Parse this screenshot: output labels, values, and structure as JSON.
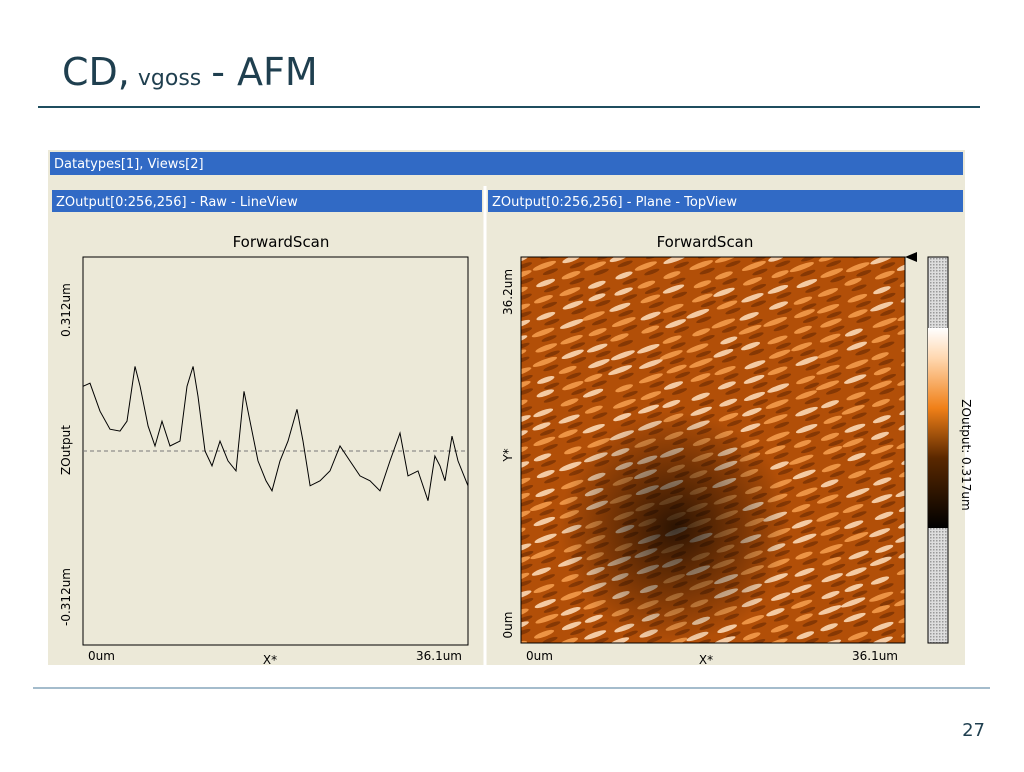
{
  "slide": {
    "title_main": "CD,",
    "title_sub": "vgoss",
    "title_rest": "- AFM",
    "page_number": "27"
  },
  "window": {
    "title": "Datatypes[1], Views[2]"
  },
  "line_view": {
    "header": "ZOutput[0:256,256] - Raw - LineView",
    "plot_title": "ForwardScan",
    "y_label": "ZOutput",
    "x_label": "X*",
    "y_top_label": "0.312um",
    "y_bottom_label": "-0.312um",
    "x_left_label": "0um",
    "x_right_label": "36.1um",
    "xlim": [
      0,
      36.1
    ],
    "ylim": [
      -0.312,
      0.312
    ],
    "x": [
      0,
      0.66,
      1.59,
      2.53,
      3.47,
      4.13,
      4.88,
      5.35,
      6.1,
      6.75,
      7.41,
      8.16,
      9.1,
      9.75,
      10.32,
      10.78,
      11.44,
      12.1,
      12.85,
      13.6,
      14.35,
      15.1,
      15.66,
      16.41,
      17.16,
      17.72,
      18.47,
      19.22,
      20.07,
      20.63,
      21.29,
      22.22,
      23.16,
      24.1,
      25.03,
      25.97,
      26.91,
      27.85,
      28.79,
      29.72,
      30.47,
      31.41,
      32.35,
      33.0,
      33.47,
      33.94,
      34.6,
      35.16,
      36.1
    ],
    "profile": [
      0.104,
      0.109,
      0.064,
      0.035,
      0.032,
      0.048,
      0.136,
      0.104,
      0.04,
      0.008,
      0.048,
      0.008,
      0.016,
      0.104,
      0.136,
      0.088,
      0,
      -0.024,
      0.016,
      -0.016,
      -0.032,
      0.096,
      0.048,
      -0.016,
      -0.048,
      -0.064,
      -0.016,
      0.016,
      0.067,
      0.016,
      -0.056,
      -0.048,
      -0.032,
      0.008,
      -0.016,
      -0.04,
      -0.048,
      -0.064,
      -0.016,
      0.029,
      -0.04,
      -0.032,
      -0.08,
      -0.008,
      -0.024,
      -0.048,
      0.024,
      -0.016,
      -0.056
    ]
  },
  "top_view": {
    "header": "ZOutput[0:256,256] - Plane - TopView",
    "plot_title": "ForwardScan",
    "y_label": "Y*",
    "x_label": "X*",
    "y_top_label": "36.2um",
    "y_bottom_label": "0um",
    "x_left_label": "0um",
    "x_right_label": "36.1um",
    "colorbar_label": "ZOutput: 0.317um"
  }
}
